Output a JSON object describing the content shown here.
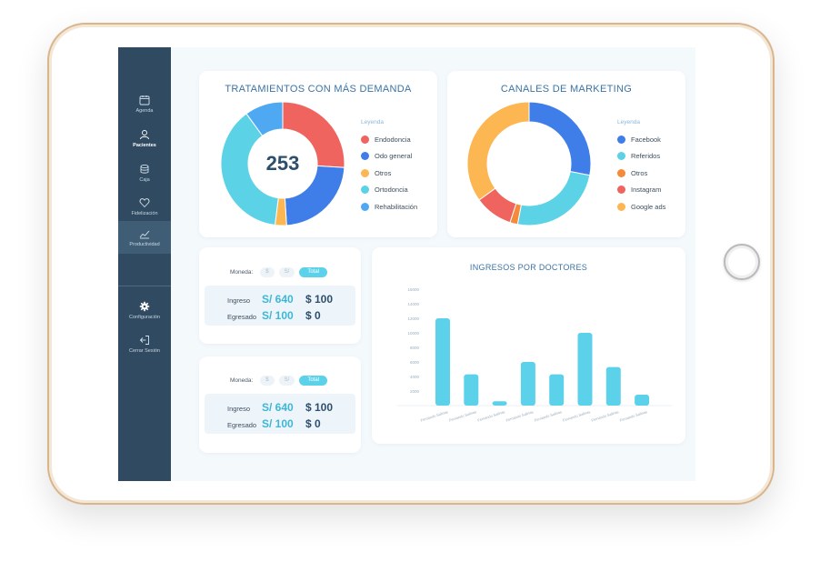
{
  "sidebar": {
    "items": [
      {
        "label": "Agenda",
        "icon": "calendar-icon"
      },
      {
        "label": "Pacientes",
        "icon": "user-icon"
      },
      {
        "label": "Caja",
        "icon": "coins-icon"
      },
      {
        "label": "Fidelización",
        "icon": "heart-icon"
      },
      {
        "label": "Productividad",
        "icon": "chart-line-icon"
      },
      {
        "label": "Configuración",
        "icon": "gear-icon"
      },
      {
        "label": "Cerrar Sesión",
        "icon": "logout-icon"
      }
    ]
  },
  "treatments": {
    "title": "TRATAMIENTOS CON MÁS DEMANDA",
    "total": "253",
    "legend_title": "Leyenda",
    "items": [
      {
        "label": "Endodoncia",
        "color": "#f0645f",
        "value": 26
      },
      {
        "label": "Odo general",
        "color": "#3f7ee8",
        "value": 23
      },
      {
        "label": "Otros",
        "color": "#fcb652",
        "value": 3
      },
      {
        "label": "Ortodoncia",
        "color": "#5cd2e6",
        "value": 38
      },
      {
        "label": "Rehabilitación",
        "color": "#4fa8f2",
        "value": 10
      }
    ]
  },
  "marketing": {
    "title": "CANALES DE MARKETING",
    "legend_title": "Leyenda",
    "items": [
      {
        "label": "Facebook",
        "color": "#3f7ee8",
        "value": 28
      },
      {
        "label": "Referidos",
        "color": "#5cd2e6",
        "value": 25
      },
      {
        "label": "Otros",
        "color": "#f58a3a",
        "value": 2
      },
      {
        "label": "Instagram",
        "color": "#f0645f",
        "value": 10
      },
      {
        "label": "Google ads",
        "color": "#fcb652",
        "value": 35
      }
    ]
  },
  "cash_cards": [
    {
      "currency_label": "Moneda:",
      "options": [
        "$",
        "S/",
        "Total"
      ],
      "rows": [
        {
          "label": "Ingreso",
          "value_a": "S/ 640",
          "value_b": "$ 100"
        },
        {
          "label": "Egresado",
          "value_a": "S/ 100",
          "value_b": "$ 0"
        }
      ]
    },
    {
      "currency_label": "Moneda:",
      "options": [
        "$",
        "S/",
        "Total"
      ],
      "rows": [
        {
          "label": "Ingreso",
          "value_a": "S/ 640",
          "value_b": "$ 100"
        },
        {
          "label": "Egresado",
          "value_a": "S/ 100",
          "value_b": "$ 0"
        }
      ]
    }
  ],
  "chart_data": {
    "type": "bar",
    "title": "INGRESOS POR DOCTORES",
    "categories": [
      "Fernando Salinas",
      "Fernando Salinas",
      "Fernando Salinas",
      "Fernando Salinas",
      "Fernando Salinas",
      "Fernando Salinas",
      "Fernando Salinas",
      "Fernando Salinas"
    ],
    "values": [
      12000,
      4300,
      600,
      6000,
      4300,
      10000,
      5300,
      1500
    ],
    "yticks": [
      "16000",
      "14000",
      "12000",
      "10000",
      "8000",
      "6000",
      "4000",
      "2000"
    ],
    "ylim": [
      0,
      16000
    ],
    "color": "#5cd2ea",
    "grid": false
  }
}
